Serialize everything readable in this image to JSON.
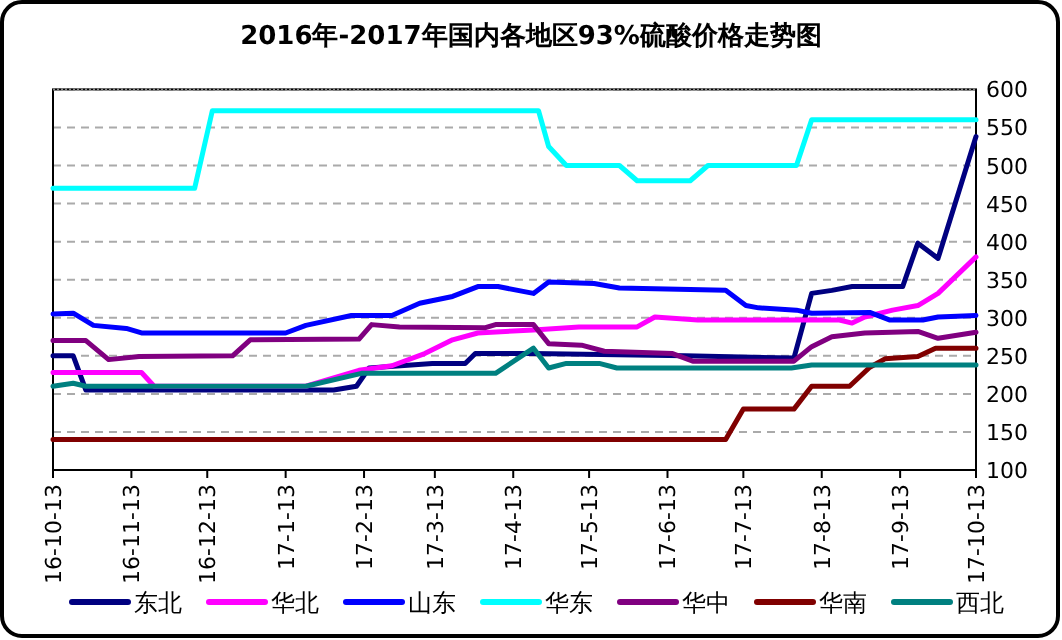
{
  "chart_data": {
    "type": "line",
    "title": "2016年-2017年国内各地区93%硫酸价格走势图",
    "xlim": [
      "2016-10-13",
      "2017-10-13"
    ],
    "xticks": [
      {
        "value": "2016-10-13",
        "label": "16-10-13"
      },
      {
        "value": "2016-11-13",
        "label": "16-11-13"
      },
      {
        "value": "2016-12-13",
        "label": "16-12-13"
      },
      {
        "value": "2017-01-13",
        "label": "17-1-13"
      },
      {
        "value": "2017-02-13",
        "label": "17-2-13"
      },
      {
        "value": "2017-03-13",
        "label": "17-3-13"
      },
      {
        "value": "2017-04-13",
        "label": "17-4-13"
      },
      {
        "value": "2017-05-13",
        "label": "17-5-13"
      },
      {
        "value": "2017-06-13",
        "label": "17-6-13"
      },
      {
        "value": "2017-07-13",
        "label": "17-7-13"
      },
      {
        "value": "2017-08-13",
        "label": "17-8-13"
      },
      {
        "value": "2017-09-13",
        "label": "17-9-13"
      },
      {
        "value": "2017-10-13",
        "label": "17-10-13"
      }
    ],
    "ylim": [
      100,
      600
    ],
    "yticks": [
      100,
      150,
      200,
      250,
      300,
      350,
      400,
      450,
      500,
      550,
      600
    ],
    "grid": "y",
    "legend": "bottom",
    "series": [
      {
        "name": "东北",
        "color": "#000080",
        "x": [
          "2016-10-13",
          "2016-10-21",
          "2016-10-26",
          "2017-01-21",
          "2017-02-01",
          "2017-02-10",
          "2017-02-15",
          "2017-03-12",
          "2017-03-25",
          "2017-03-29",
          "2017-04-21",
          "2017-06-20",
          "2017-08-02",
          "2017-08-09",
          "2017-08-17",
          "2017-08-25",
          "2017-09-14",
          "2017-09-20",
          "2017-09-28",
          "2017-10-13"
        ],
        "values": [
          250,
          250,
          205,
          205,
          205,
          210,
          234,
          240,
          240,
          253,
          253,
          250,
          247,
          332,
          336,
          341,
          341,
          398,
          378,
          538
        ]
      },
      {
        "name": "华北",
        "color": "#ff00ff",
        "x": [
          "2016-10-13",
          "2016-11-17",
          "2016-11-22",
          "2017-01-21",
          "2017-02-11",
          "2017-02-24",
          "2017-03-09",
          "2017-03-20",
          "2017-03-30",
          "2017-04-21",
          "2017-05-09",
          "2017-06-01",
          "2017-06-08",
          "2017-06-25",
          "2017-08-20",
          "2017-08-25",
          "2017-08-30",
          "2017-09-10",
          "2017-09-20",
          "2017-09-28",
          "2017-10-13"
        ],
        "values": [
          228,
          228,
          210,
          210,
          231,
          237,
          253,
          271,
          280,
          284,
          288,
          288,
          301,
          297,
          297,
          293,
          301,
          310,
          316,
          332,
          380
        ]
      },
      {
        "name": "山东",
        "color": "#0000ff",
        "x": [
          "2016-10-13",
          "2016-10-21",
          "2016-10-29",
          "2016-11-11",
          "2016-11-17",
          "2017-01-13",
          "2017-01-21",
          "2017-02-08",
          "2017-02-24",
          "2017-03-07",
          "2017-03-20",
          "2017-03-30",
          "2017-04-07",
          "2017-04-21",
          "2017-04-27",
          "2017-05-15",
          "2017-05-25",
          "2017-07-06",
          "2017-07-14",
          "2017-07-19",
          "2017-08-03",
          "2017-08-09",
          "2017-09-01",
          "2017-09-09",
          "2017-09-22",
          "2017-09-28",
          "2017-10-13"
        ],
        "values": [
          305,
          306,
          290,
          286,
          280,
          280,
          290,
          303,
          303,
          319,
          328,
          341,
          341,
          332,
          347,
          345,
          339,
          336,
          316,
          313,
          310,
          306,
          307,
          297,
          297,
          301,
          303
        ]
      },
      {
        "name": "华东",
        "color": "#00ffff",
        "x": [
          "2016-10-13",
          "2016-12-08",
          "2016-12-15",
          "2017-04-23",
          "2017-04-27",
          "2017-05-04",
          "2017-05-25",
          "2017-06-01",
          "2017-06-22",
          "2017-06-29",
          "2017-08-03",
          "2017-08-09",
          "2017-10-13"
        ],
        "values": [
          470,
          470,
          572,
          572,
          525,
          500,
          500,
          480,
          480,
          500,
          500,
          560,
          560
        ]
      },
      {
        "name": "华中",
        "color": "#800080",
        "x": [
          "2016-10-13",
          "2016-10-26",
          "2016-11-04",
          "2016-11-16",
          "2016-12-23",
          "2016-12-30",
          "2017-02-11",
          "2017-02-16",
          "2017-02-27",
          "2017-04-02",
          "2017-04-06",
          "2017-04-21",
          "2017-04-27",
          "2017-05-10",
          "2017-05-19",
          "2017-06-15",
          "2017-06-23",
          "2017-08-02",
          "2017-08-09",
          "2017-08-17",
          "2017-08-30",
          "2017-09-20",
          "2017-09-28",
          "2017-10-13"
        ],
        "values": [
          270,
          270,
          245,
          249,
          250,
          271,
          272,
          291,
          288,
          287,
          291,
          291,
          266,
          264,
          256,
          253,
          243,
          243,
          262,
          275,
          280,
          282,
          273,
          281
        ]
      },
      {
        "name": "华南",
        "color": "#800000",
        "x": [
          "2016-10-13",
          "2017-07-06",
          "2017-07-13",
          "2017-08-02",
          "2017-08-09",
          "2017-08-24",
          "2017-09-01",
          "2017-09-07",
          "2017-09-20",
          "2017-09-27",
          "2017-10-13"
        ],
        "values": [
          140,
          140,
          180,
          180,
          210,
          210,
          235,
          246,
          249,
          260,
          260
        ]
      },
      {
        "name": "西北",
        "color": "#008080",
        "x": [
          "2016-10-13",
          "2016-10-21",
          "2016-10-26",
          "2017-01-21",
          "2017-02-12",
          "2017-04-06",
          "2017-04-21",
          "2017-04-27",
          "2017-05-04",
          "2017-05-17",
          "2017-05-24",
          "2017-08-01",
          "2017-08-09",
          "2017-10-13"
        ],
        "values": [
          210,
          214,
          210,
          210,
          227,
          227,
          260,
          234,
          240,
          240,
          234,
          234,
          238,
          238
        ]
      }
    ]
  }
}
